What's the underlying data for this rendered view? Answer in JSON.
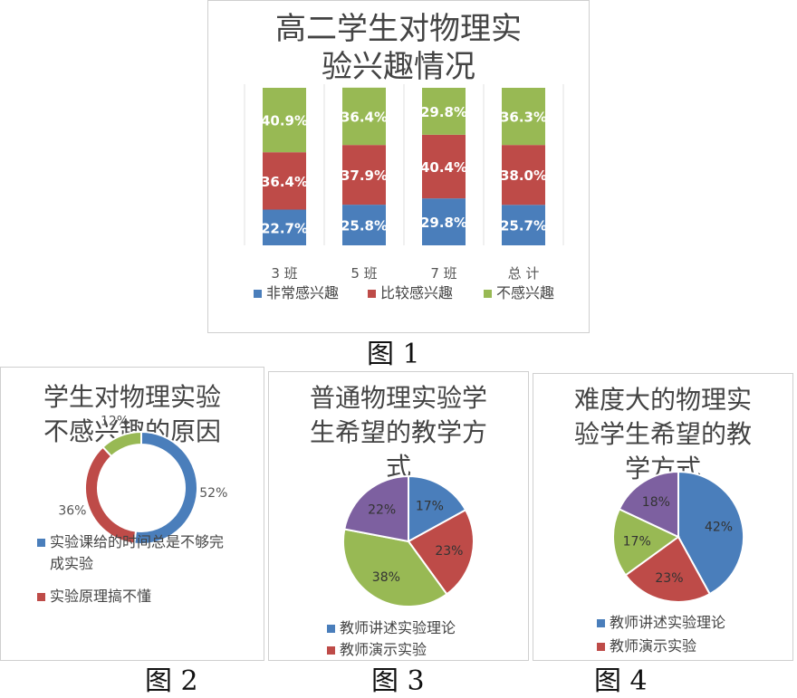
{
  "chart_data": [
    {
      "type": "bar",
      "stacked": true,
      "title_lines": [
        "高二学生对物理实",
        "验兴趣情况"
      ],
      "categories": [
        "3 班",
        "5 班",
        "7 班",
        "总 计"
      ],
      "series": [
        {
          "name": "非常感兴趣",
          "color": "#4a7ebb",
          "values": [
            22.7,
            25.8,
            29.8,
            25.7
          ],
          "labels": [
            "22.7%",
            "25.8%",
            "29.8%",
            "25.7%"
          ]
        },
        {
          "name": "比较感兴趣",
          "color": "#be4b48",
          "values": [
            36.4,
            37.9,
            40.4,
            38.0
          ],
          "labels": [
            "36.4%",
            "37.9%",
            "40.4%",
            "38.0%"
          ]
        },
        {
          "name": "不感兴趣",
          "color": "#98b954",
          "values": [
            40.9,
            36.4,
            29.8,
            36.3
          ],
          "labels": [
            "40.9%",
            "36.4%",
            "29.8%",
            "36.3%"
          ]
        }
      ],
      "ylim": [
        0,
        100
      ],
      "grid": false,
      "legend_position": "bottom",
      "figure_label": "图 1"
    },
    {
      "type": "pie",
      "donut": true,
      "title_lines": [
        "学生对物理实验",
        "不感兴趣的原因"
      ],
      "slices": [
        {
          "value": 52,
          "label": "52%",
          "color": "#4a7ebb",
          "legend": "实验课给的时间总是不够完成实验",
          "legend_lines": [
            "实验课给的时间总是不够完",
            "成实验"
          ]
        },
        {
          "value": 36,
          "label": "36%",
          "color": "#be4b48",
          "legend": "实验原理搞不懂",
          "legend_lines": [
            "实验原理搞不懂"
          ]
        },
        {
          "value": 12,
          "label": "12%",
          "color": "#98b954"
        }
      ],
      "legend_position": "right",
      "figure_label": "图 2"
    },
    {
      "type": "pie",
      "title_lines": [
        "普通物理实验学",
        "生希望的教学方",
        "式"
      ],
      "slices": [
        {
          "value": 17,
          "label": "17%",
          "color": "#4a7ebb",
          "legend": "教师讲述实验理论"
        },
        {
          "value": 23,
          "label": "23%",
          "color": "#be4b48",
          "legend": "教师演示实验"
        },
        {
          "value": 38,
          "label": "38%",
          "color": "#98b954"
        },
        {
          "value": 22,
          "label": "22%",
          "color": "#7d60a0"
        }
      ],
      "legend_position": "bottom",
      "figure_label": "图 3"
    },
    {
      "type": "pie",
      "title_lines": [
        "难度大的物理实",
        "验学生希望的教",
        "学方式"
      ],
      "slices": [
        {
          "value": 42,
          "label": "42%",
          "color": "#4a7ebb",
          "legend": "教师讲述实验理论"
        },
        {
          "value": 23,
          "label": "23%",
          "color": "#be4b48",
          "legend": "教师演示实验"
        },
        {
          "value": 17,
          "label": "17%",
          "color": "#98b954"
        },
        {
          "value": 18,
          "label": "18%",
          "color": "#7d60a0"
        }
      ],
      "legend_position": "bottom",
      "figure_label": "图 4"
    }
  ]
}
